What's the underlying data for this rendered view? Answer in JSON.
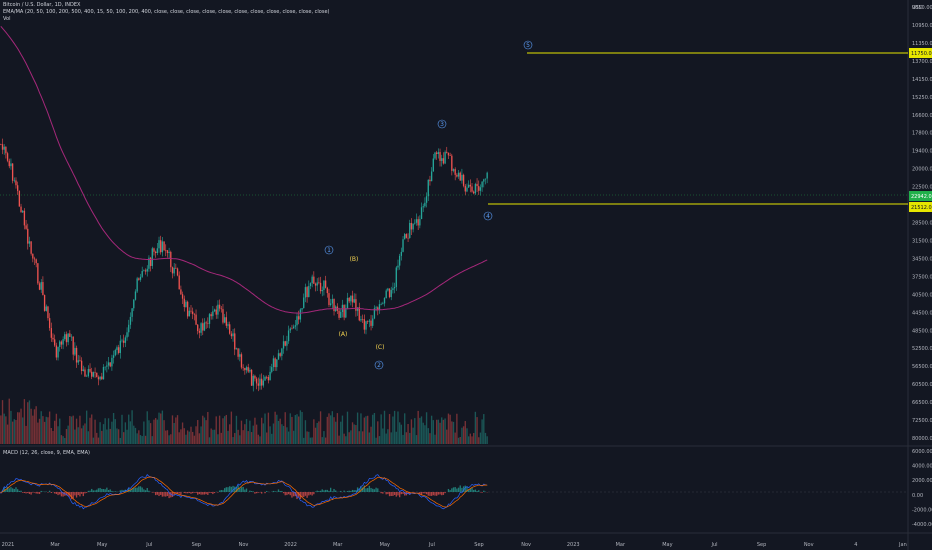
{
  "header": {
    "symbol_line": "Bitcoin / U.S. Dollar, 1D, INDEX",
    "indicator_line": "EMA/MA (20, 50, 100, 200, 500, 400, 15, 50, 100, 200, 400, close, close, close, close, close, close, close, close, close, close, close)",
    "vol_label": "Vol",
    "currency": "USD"
  },
  "macd": {
    "label": "MACD (12, 26, close, 9, EMA, EMA)"
  },
  "colors": {
    "background": "#131722",
    "up": "#26a69a",
    "down": "#ef5350",
    "ma": "#a5287a",
    "level": "#e6e600",
    "wave_blue": "#5b9cf6",
    "wave_yellow": "#f5d451",
    "badge_green": "#21b04b"
  },
  "chart_data": [
    {
      "type": "line",
      "title": "Bitcoin / U.S. Dollar, 1D, INDEX",
      "price_axis": "inverted (higher values lower on axis)",
      "y_ticks": [
        "9850.00",
        "10950.00",
        "11350.00",
        "13700.00",
        "14150.00",
        "15250.00",
        "16600.00",
        "17800.00",
        "19400.00",
        "20000.00",
        "22500.00",
        "25300.00",
        "28500.00",
        "31500.00",
        "34500.00",
        "37500.00",
        "40500.00",
        "44500.00",
        "48500.00",
        "52500.00",
        "56500.00",
        "60500.00",
        "66500.00",
        "72500.00",
        "80000.00"
      ],
      "x_ticks": [
        "2021",
        "Mar",
        "May",
        "Jul",
        "Sep",
        "Nov",
        "2022",
        "Mar",
        "May",
        "Jul",
        "Sep",
        "Nov",
        "2023",
        "Mar",
        "May",
        "Jul",
        "Sep",
        "Nov",
        "4",
        "Jan"
      ],
      "price_series": [
        {
          "d": "2021-01",
          "v": 18500
        },
        {
          "d": "2021-01",
          "v": 22000
        },
        {
          "d": "2021-02",
          "v": 30000
        },
        {
          "d": "2021-02",
          "v": 38000
        },
        {
          "d": "2021-03",
          "v": 52000
        },
        {
          "d": "2021-03",
          "v": 48000
        },
        {
          "d": "2021-04",
          "v": 57000
        },
        {
          "d": "2021-04",
          "v": 60000
        },
        {
          "d": "2021-05",
          "v": 55000
        },
        {
          "d": "2021-05",
          "v": 50000
        },
        {
          "d": "2021-06",
          "v": 38000
        },
        {
          "d": "2021-06",
          "v": 33000
        },
        {
          "d": "2021-07",
          "v": 30000
        },
        {
          "d": "2021-07",
          "v": 36000
        },
        {
          "d": "2021-08",
          "v": 44000
        },
        {
          "d": "2021-09",
          "v": 47000
        },
        {
          "d": "2021-09",
          "v": 42000
        },
        {
          "d": "2021-10",
          "v": 48000
        },
        {
          "d": "2021-10",
          "v": 56000
        },
        {
          "d": "2021-11",
          "v": 63000
        },
        {
          "d": "2021-11",
          "v": 57000
        },
        {
          "d": "2021-12",
          "v": 49000
        },
        {
          "d": "2022-01",
          "v": 43000
        },
        {
          "d": "2022-01",
          "v": 36000
        },
        {
          "d": "2022-02",
          "v": 38000
        },
        {
          "d": "2022-02",
          "v": 44000
        },
        {
          "d": "2022-03",
          "v": 40000
        },
        {
          "d": "2022-03",
          "v": 46000
        },
        {
          "d": "2022-04",
          "v": 42000
        },
        {
          "d": "2022-05",
          "v": 38000
        },
        {
          "d": "2022-05",
          "v": 29000
        },
        {
          "d": "2022-06",
          "v": 27000
        },
        {
          "d": "2022-06",
          "v": 20000
        },
        {
          "d": "2022-07",
          "v": 19500
        },
        {
          "d": "2022-07",
          "v": 22000
        },
        {
          "d": "2022-08",
          "v": 23500
        },
        {
          "d": "2022-08",
          "v": 21500
        }
      ],
      "ma_series_note": "long moving average, magenta"
    },
    {
      "type": "bar",
      "title": "Vol",
      "note": "volume histogram, colored by candle direction"
    },
    {
      "type": "line",
      "title": "MACD (12, 26, close, 9, EMA, EMA)",
      "y_ticks": [
        "6000.00",
        "4000.00",
        "2000.00",
        "0.00",
        "-2000.00",
        "-4000.00"
      ]
    }
  ],
  "price_labels": {
    "current": "22942.0",
    "target": "11750.00",
    "level2": "21512.0"
  },
  "waves": [
    {
      "label": "1",
      "style": "circle"
    },
    {
      "label": "2",
      "style": "circle"
    },
    {
      "label": "3",
      "style": "circle"
    },
    {
      "label": "4",
      "style": "circle"
    },
    {
      "label": "5",
      "style": "circle"
    },
    {
      "label": "(A)",
      "style": "yellow"
    },
    {
      "label": "(B)",
      "style": "yellow"
    },
    {
      "label": "(C)",
      "style": "yellow"
    }
  ]
}
